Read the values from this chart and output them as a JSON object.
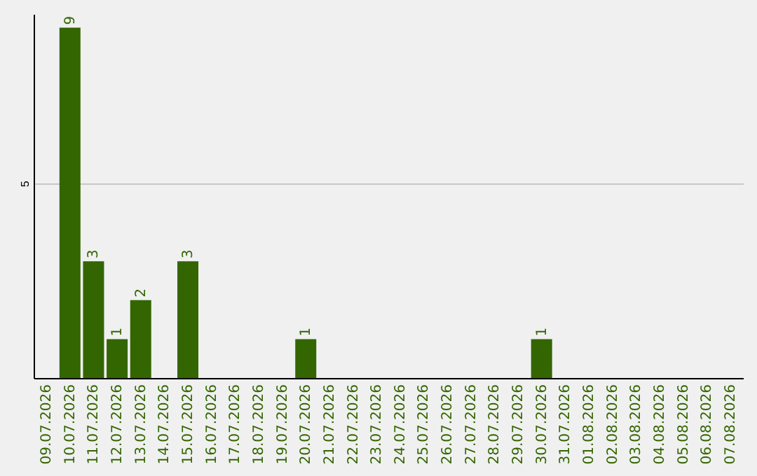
{
  "chart_data": {
    "type": "bar",
    "categories": [
      "09.07.2026",
      "10.07.2026",
      "11.07.2026",
      "12.07.2026",
      "13.07.2026",
      "14.07.2026",
      "15.07.2026",
      "16.07.2026",
      "17.07.2026",
      "18.07.2026",
      "19.07.2026",
      "20.07.2026",
      "21.07.2026",
      "22.07.2026",
      "23.07.2026",
      "24.07.2026",
      "25.07.2026",
      "26.07.2026",
      "27.07.2026",
      "28.07.2026",
      "29.07.2026",
      "30.07.2026",
      "31.07.2026",
      "01.08.2026",
      "02.08.2026",
      "03.08.2026",
      "04.08.2026",
      "05.08.2026",
      "06.08.2026",
      "07.08.2026"
    ],
    "values": [
      null,
      9,
      3,
      1,
      2,
      null,
      3,
      null,
      null,
      null,
      null,
      1,
      null,
      null,
      null,
      null,
      null,
      null,
      null,
      null,
      null,
      1,
      null,
      null,
      null,
      null,
      null,
      null,
      null,
      null
    ],
    "color": "#336600",
    "ylim": [
      0,
      9.35
    ],
    "yticks": [
      5
    ],
    "grid": "y",
    "data_labels": true
  }
}
